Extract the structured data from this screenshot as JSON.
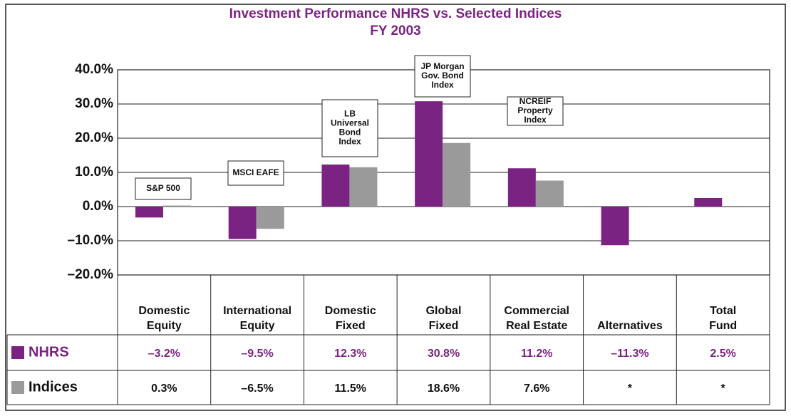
{
  "chart_data": {
    "type": "bar",
    "title": "Investment Performance NHRS vs. Selected Indices",
    "subtitle": "FY 2003",
    "categories": [
      [
        "Domestic",
        "Equity"
      ],
      [
        "International",
        "Equity"
      ],
      [
        "Domestic",
        "Fixed"
      ],
      [
        "Global",
        "Fixed"
      ],
      [
        "Commercial",
        "Real Estate"
      ],
      [
        "Alternatives"
      ],
      [
        "Total",
        "Fund"
      ]
    ],
    "series": [
      {
        "name": "NHRS",
        "color": "#7b2382",
        "values": [
          -3.2,
          -9.5,
          12.3,
          30.8,
          11.2,
          -11.3,
          2.5
        ],
        "value_labels": [
          "–3.2%",
          "–9.5%",
          "12.3%",
          "30.8%",
          "11.2%",
          "–11.3%",
          "2.5%"
        ]
      },
      {
        "name": "Indices",
        "color": "#9a9a9a",
        "values": [
          0.3,
          -6.5,
          11.5,
          18.6,
          7.6,
          null,
          null
        ],
        "value_labels": [
          "0.3%",
          "–6.5%",
          "11.5%",
          "18.6%",
          "7.6%",
          "*",
          "*"
        ]
      }
    ],
    "annotations": [
      [
        "S&P 500"
      ],
      [
        "MSCI EAFE"
      ],
      [
        "LB",
        "Universal",
        "Bond",
        "Index"
      ],
      [
        "JP Morgan",
        "Gov. Bond",
        "Index"
      ],
      [
        "NCREIF",
        "Property",
        "Index"
      ]
    ],
    "ylim": [
      -20,
      40
    ],
    "yticks": [
      {
        "value": 40,
        "label": "40.0%"
      },
      {
        "value": 30,
        "label": "30.0%"
      },
      {
        "value": 20,
        "label": "20.0%"
      },
      {
        "value": 10,
        "label": "10.0%"
      },
      {
        "value": 0,
        "label": "0.0%"
      },
      {
        "value": -10,
        "label": "–10.0%"
      },
      {
        "value": -20,
        "label": "–20.0%"
      }
    ],
    "grid": true
  }
}
